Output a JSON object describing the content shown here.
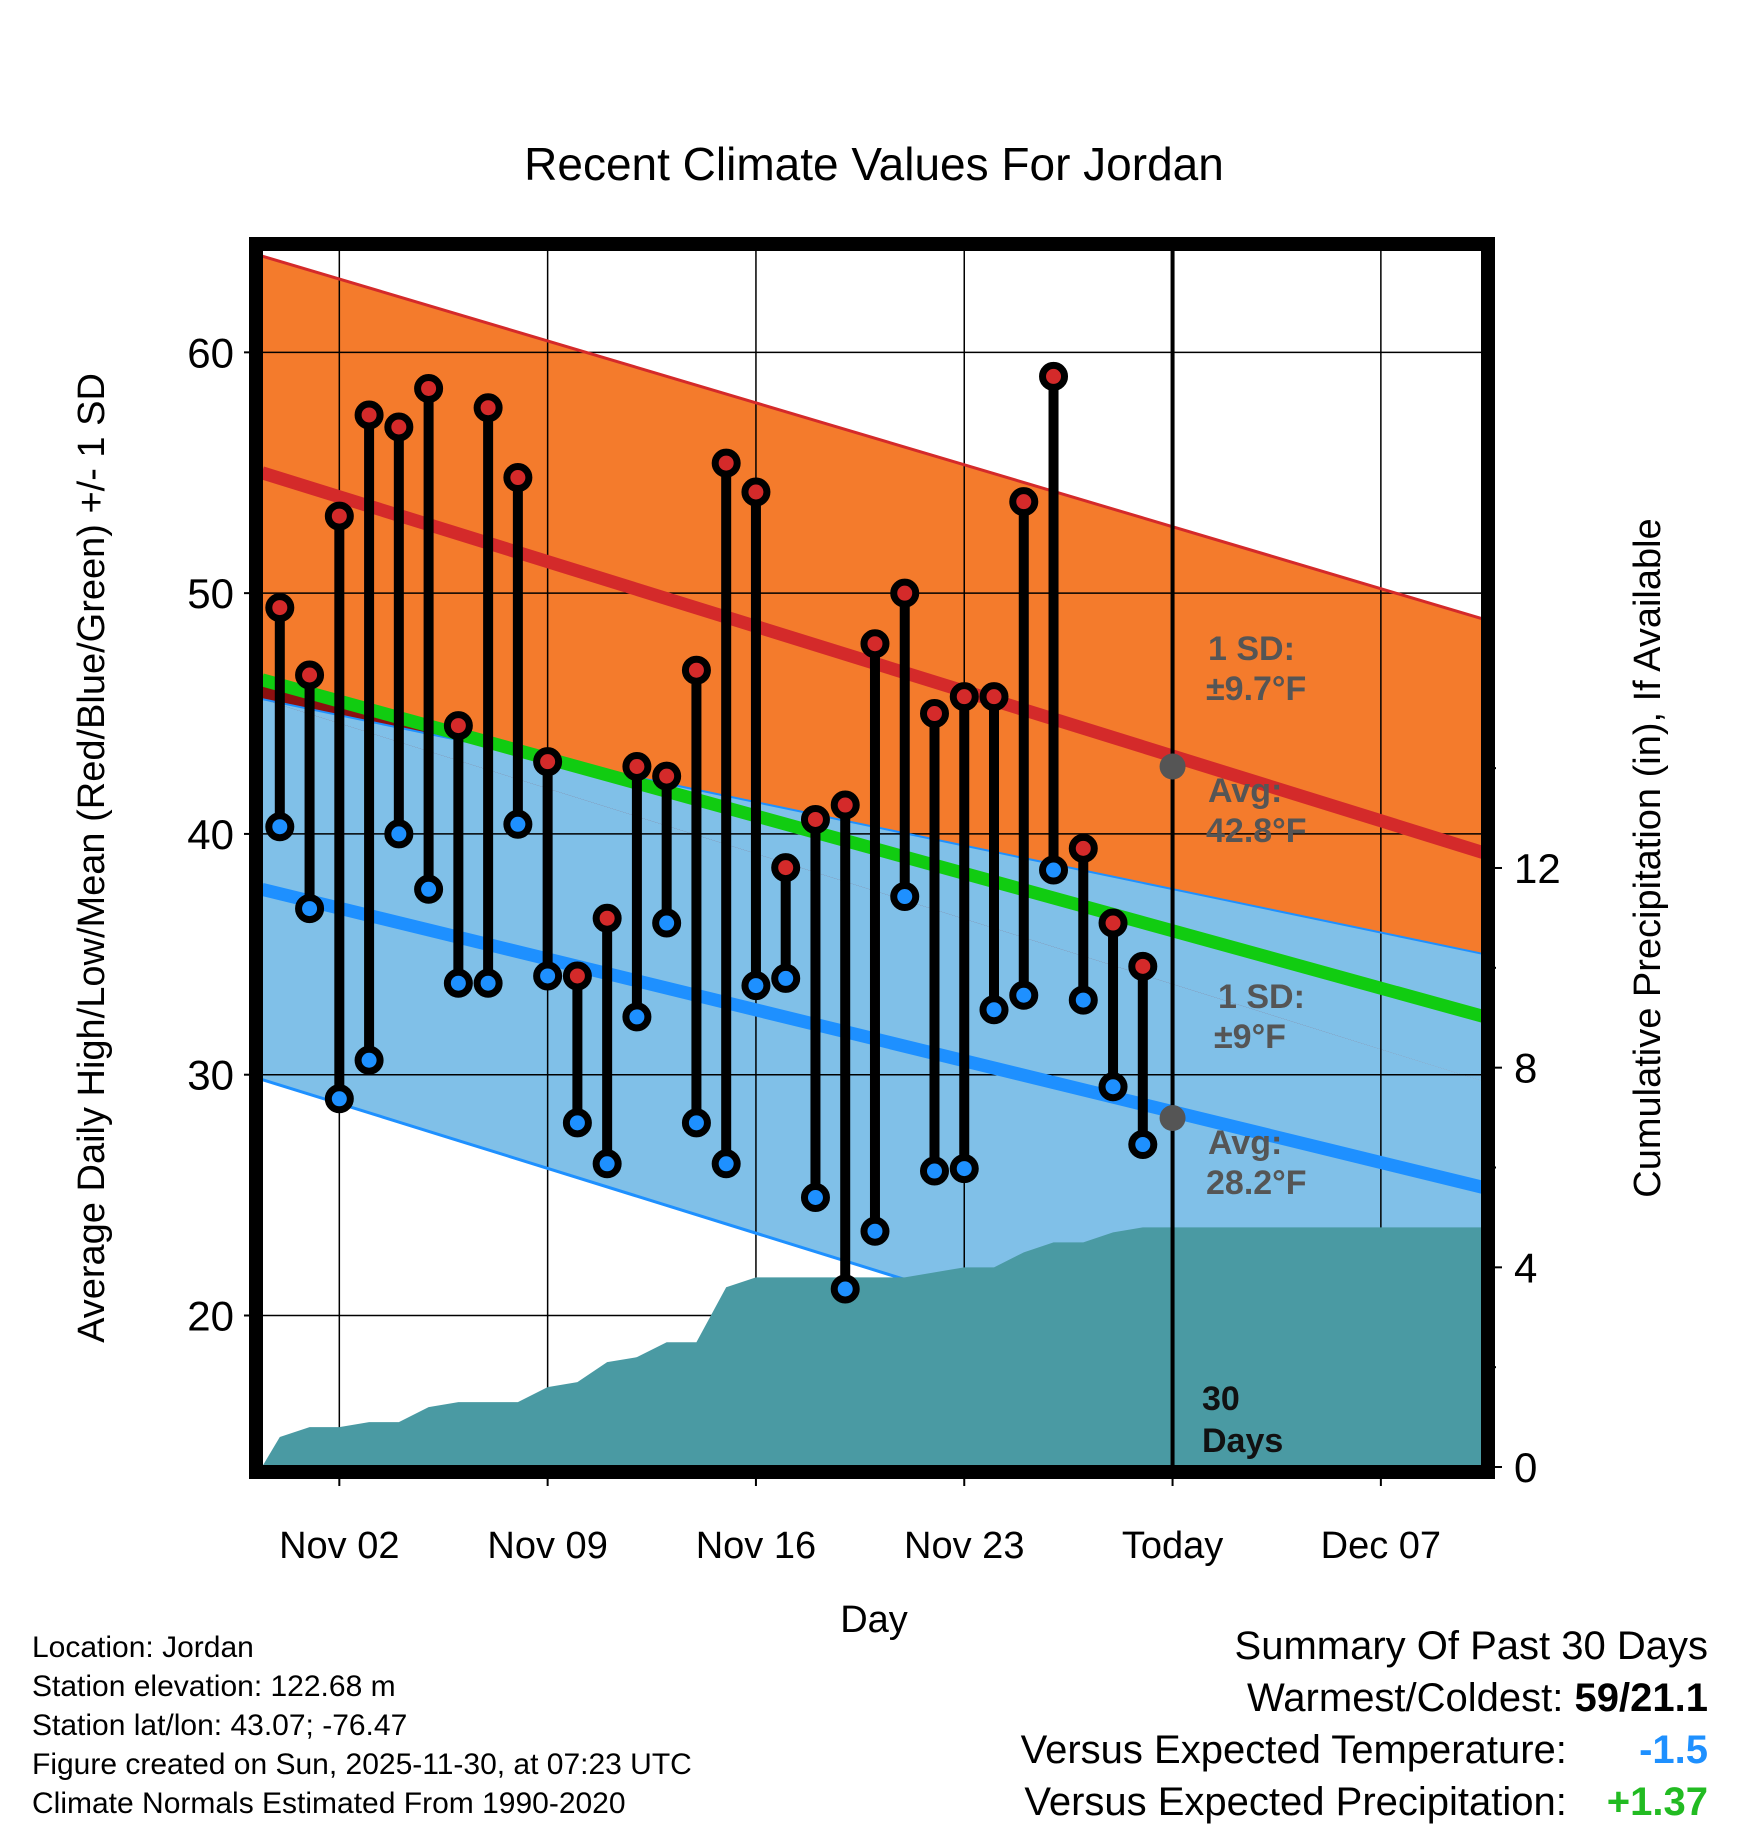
{
  "colors": {
    "high_band": "#f47b2c",
    "high_line": "#d42a2a",
    "mean_line": "#11cc11",
    "mean_band": "#8c1010",
    "low_band": "#80c0e8",
    "low_line": "#1e90ff",
    "precip": "#4a9aa3",
    "high_dot": "#d42a2a",
    "low_dot": "#1e90ff",
    "annot": "#555555",
    "pos_precip": "#22bb22",
    "neg_temp": "#1e90ff"
  },
  "chart_data": {
    "type": "range-bar",
    "title": "Recent Climate Values For Jordan",
    "xlabel": "Day",
    "ylabel": "Average Daily High/Low/Mean (Red/Blue/Green) +/- 1 SD",
    "y2label": "Cumulative Precipitation (in), If Available",
    "ylim": [
      13.5,
      64.5
    ],
    "y2lim": [
      -0.1,
      24.5
    ],
    "xlim": [
      -2.8,
      38.6
    ],
    "yticks": [
      20,
      30,
      40,
      50,
      60
    ],
    "y2ticks": [
      0,
      4,
      8,
      12
    ],
    "xticks": [
      {
        "x": 0,
        "label": "Nov 02"
      },
      {
        "x": 7,
        "label": "Nov 09"
      },
      {
        "x": 14,
        "label": "Nov 16"
      },
      {
        "x": 21,
        "label": "Nov 23"
      },
      {
        "x": 28,
        "label": "Today"
      },
      {
        "x": 35,
        "label": "Dec 07"
      }
    ],
    "days": [
      -2,
      -1,
      0,
      1,
      2,
      3,
      4,
      5,
      6,
      7,
      8,
      9,
      10,
      11,
      12,
      13,
      14,
      15,
      16,
      17,
      18,
      19,
      20,
      21,
      22,
      23,
      24,
      25,
      26,
      27
    ],
    "highs": [
      49.4,
      46.6,
      53.2,
      57.4,
      56.9,
      58.5,
      44.5,
      57.7,
      54.8,
      43.0,
      34.1,
      36.5,
      42.8,
      42.4,
      46.8,
      55.4,
      54.2,
      38.6,
      40.6,
      41.2,
      47.9,
      50.0,
      45.0,
      45.7,
      45.7,
      53.8,
      59.0,
      39.4,
      36.3,
      34.5
    ],
    "lows": [
      40.3,
      36.9,
      29.0,
      30.6,
      40.0,
      37.7,
      33.8,
      33.8,
      40.4,
      34.1,
      28.0,
      26.3,
      32.4,
      36.3,
      28.0,
      26.3,
      33.7,
      34.0,
      24.9,
      21.1,
      23.5,
      37.4,
      26.0,
      26.1,
      32.7,
      33.3,
      38.5,
      33.1,
      29.5,
      27.1
    ],
    "normals": {
      "x_range": [
        -2.6,
        38.5
      ],
      "avg_high": [
        55.0,
        39.2
      ],
      "high_sd_upper": [
        64.0,
        48.9
      ],
      "avg_mean": [
        46.4,
        32.4
      ],
      "avg_low": [
        37.7,
        25.3
      ],
      "low_sd_upper": [
        45.6,
        35.0
      ],
      "low_sd_lower": [
        29.8,
        14.0
      ]
    },
    "precip": {
      "x": [
        -2.6,
        -2.0,
        -1.0,
        0.0,
        1.0,
        2.0,
        3.0,
        4.0,
        5.0,
        6.0,
        7.0,
        8.0,
        9.0,
        10.0,
        11.0,
        12.0,
        13.0,
        14.0,
        15.0,
        16.0,
        17.0,
        18.0,
        19.0,
        20.0,
        21.0,
        22.0,
        23.0,
        24.0,
        25.0,
        26.0,
        27.0,
        28.0,
        38.5
      ],
      "values": [
        0.0,
        0.6,
        0.8,
        0.8,
        0.9,
        0.9,
        1.2,
        1.3,
        1.3,
        1.3,
        1.6,
        1.7,
        2.1,
        2.2,
        2.5,
        2.5,
        3.6,
        3.8,
        3.8,
        3.8,
        3.8,
        3.8,
        3.8,
        3.9,
        4.0,
        4.0,
        4.3,
        4.5,
        4.5,
        4.7,
        4.8,
        4.8,
        4.8
      ]
    },
    "today_x": 28,
    "today_avg_high": 42.8,
    "today_avg_low": 28.2
  },
  "annotations": {
    "high_sd_label": "1 SD:",
    "high_sd_value": "±9.7°F",
    "high_avg_label": "Avg:",
    "high_avg_value": "42.8°F",
    "low_sd_label": "1 SD:",
    "low_sd_value": "±9°F",
    "low_avg_label": "Avg:",
    "low_avg_value": "28.2°F",
    "days_number": "30",
    "days_word": "Days"
  },
  "footer": {
    "location": "Location: Jordan",
    "elevation": "Station elevation: 122.68 m",
    "latlon": "Station lat/lon: 43.07; -76.47",
    "created": "Figure created on Sun, 2025-11-30, at 07:23 UTC",
    "normals": "Climate Normals Estimated From 1990-2020"
  },
  "summary": {
    "title": "Summary Of Past 30 Days",
    "warm_cold_label": "Warmest/Coldest:",
    "warm_cold_value": "59/21.1",
    "temp_label": "Versus Expected Temperature:",
    "temp_value": "-1.5",
    "precip_label": "Versus Expected Precipitation:",
    "precip_value": "+1.37"
  }
}
